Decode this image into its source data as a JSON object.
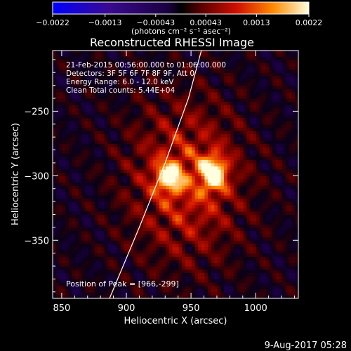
{
  "chart_data": {
    "type": "heatmap",
    "title": "Reconstructed RHESSI Image",
    "xlabel": "Heliocentric X (arcsec)",
    "ylabel": "Heliocentric Y (arcsec)",
    "xlim": [
      843,
      1033
    ],
    "ylim": [
      -395,
      -203
    ],
    "x_ticks": [
      850,
      900,
      950,
      1000
    ],
    "y_ticks": [
      -250,
      -300,
      -350
    ],
    "colorbar": {
      "range": [
        -0.0022,
        0.0022
      ],
      "tick_values": [
        -0.0022,
        -0.0013,
        -0.00043,
        0.00043,
        0.0013,
        0.0022
      ],
      "tick_labels": [
        "−0.0022",
        "−0.0013",
        "−0.00043",
        "0.00043",
        "0.0013",
        "0.0022"
      ],
      "unit_label": "(photons cm⁻² s⁻¹ asec⁻²)"
    },
    "info_lines": [
      "21-Feb-2015 00:56:00.000 to 01:06:00.000",
      "Detectors: 3F 5F 6F 7F 8F 9F, Att 0",
      "Energy Range: 6.0 - 12.0 keV",
      "Clean    Total counts: 5.44E+04"
    ],
    "peak_label": "Position of Peak = [966,-299]",
    "sources": [
      {
        "x": 966,
        "y": -299,
        "amplitude": 0.0022,
        "sigma_x": 7,
        "sigma_y": 9
      },
      {
        "x": 932,
        "y": -302,
        "amplitude": 0.0019,
        "sigma_x": 7,
        "sigma_y": 8
      }
    ],
    "limb_curve": [
      [
        887,
        -395
      ],
      [
        910,
        -340
      ],
      [
        930,
        -290
      ],
      [
        948,
        -240
      ],
      [
        958,
        -203
      ]
    ],
    "date_stamp": "9-Aug-2017 05:28"
  }
}
